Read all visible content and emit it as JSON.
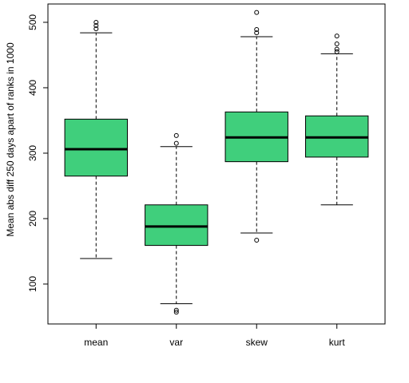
{
  "chart_data": {
    "type": "boxplot",
    "y_label": "Mean abs diff 250 days apart of ranks in 1000",
    "categories": [
      "mean",
      "var",
      "skew",
      "kurt"
    ],
    "color": "#40cf7c",
    "ylim": [
      39,
      528
    ],
    "yticks": [
      100,
      200,
      300,
      400,
      500
    ],
    "boxes": [
      {
        "low": 139,
        "q1": 265,
        "median": 306,
        "q3": 352,
        "high": 484,
        "outliers": [
          490,
          495,
          500
        ]
      },
      {
        "low": 70,
        "q1": 159,
        "median": 188,
        "q3": 221,
        "high": 310,
        "outliers": [
          327,
          315,
          60,
          57
        ]
      },
      {
        "low": 178,
        "q1": 287,
        "median": 324,
        "q3": 363,
        "high": 478,
        "outliers": [
          515,
          489,
          484,
          167
        ]
      },
      {
        "low": 221,
        "q1": 294,
        "median": 324,
        "q3": 357,
        "high": 452,
        "outliers": [
          479,
          467,
          459,
          455
        ]
      }
    ]
  }
}
